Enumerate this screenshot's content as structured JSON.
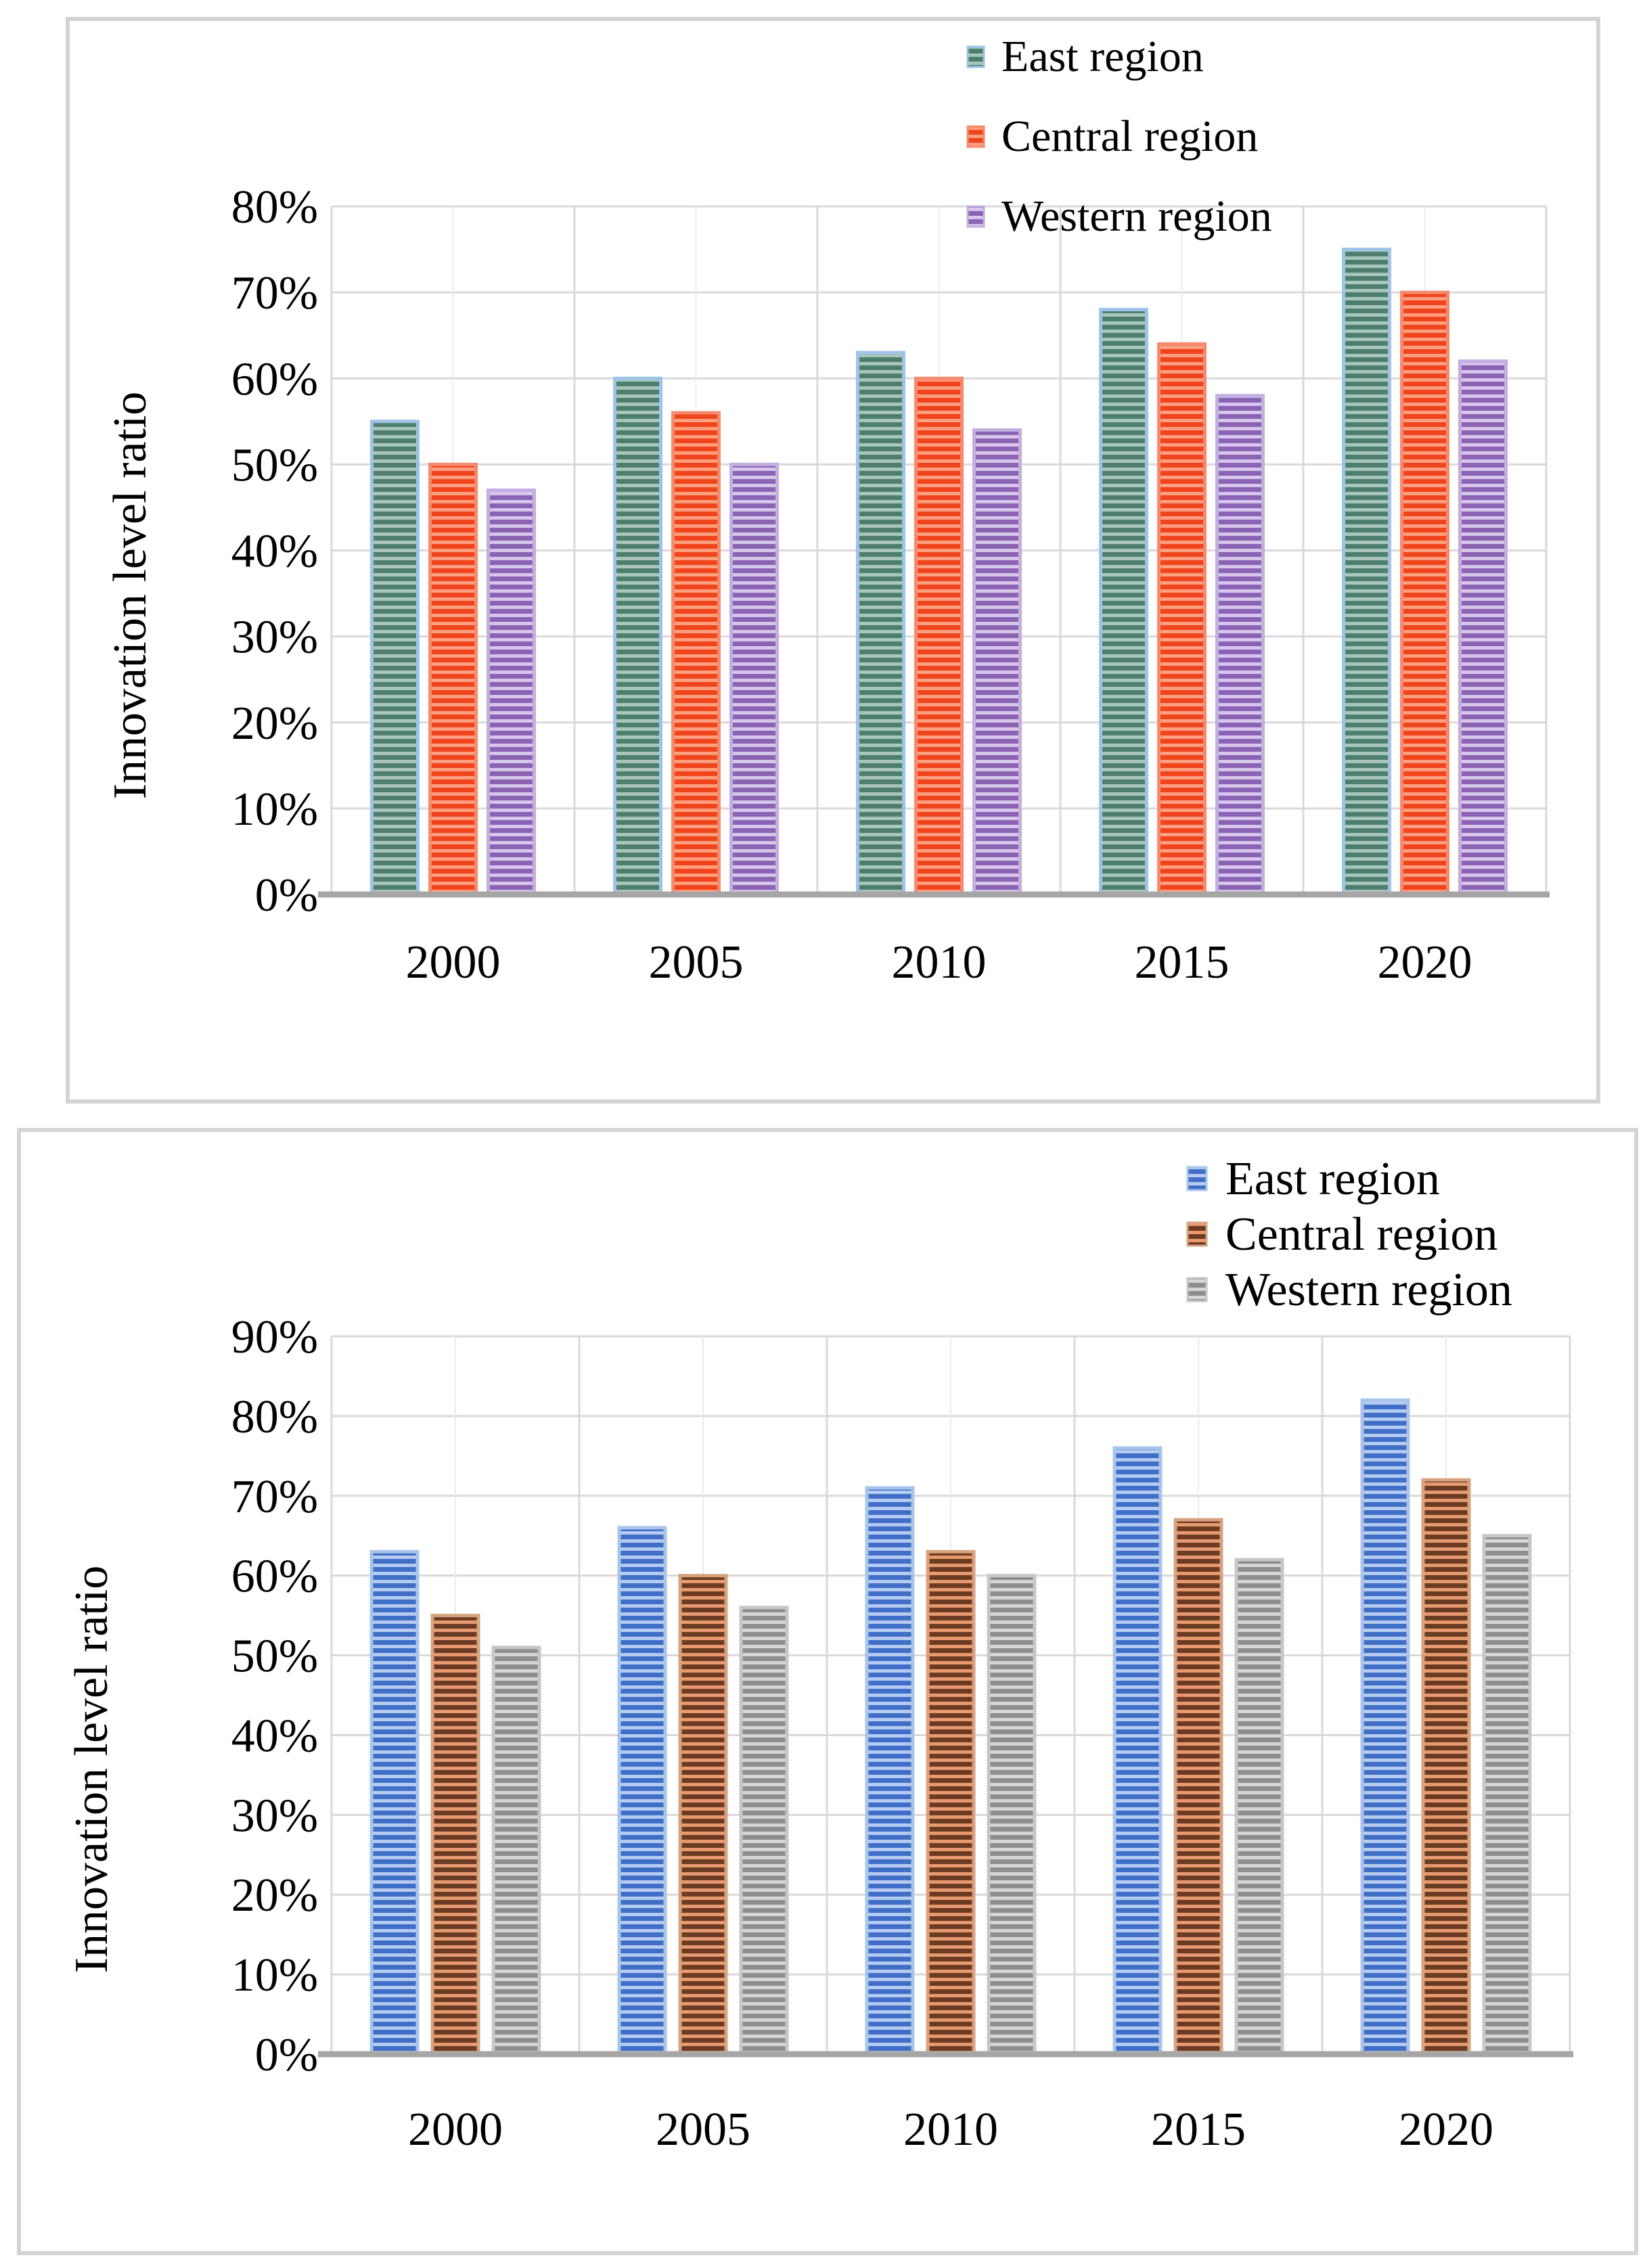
{
  "chart_data": [
    {
      "type": "bar",
      "categories": [
        "2000",
        "2005",
        "2010",
        "2015",
        "2020"
      ],
      "series": [
        {
          "name": "East region",
          "values": [
            0.55,
            0.6,
            0.63,
            0.68,
            0.75
          ],
          "color": "#4e7f6e",
          "stripe": "#a8c7bb",
          "edge": "#9ec3e8"
        },
        {
          "name": "Central region",
          "values": [
            0.5,
            0.56,
            0.6,
            0.64,
            0.7
          ],
          "color": "#f0441c",
          "stripe": "#ff9f80",
          "edge": "#f58a6e"
        },
        {
          "name": "Western region",
          "values": [
            0.47,
            0.5,
            0.54,
            0.58,
            0.62
          ],
          "color": "#8a63b5",
          "stripe": "#d6c6ea",
          "edge": "#c2aee0"
        }
      ],
      "ylabel": "Innovation level ratio",
      "xlabel": "",
      "ylim": [
        0,
        0.8
      ],
      "yticks": [
        "0%",
        "10%",
        "20%",
        "30%",
        "40%",
        "50%",
        "60%",
        "70%",
        "80%"
      ],
      "grid": true,
      "legend_position": "top-right"
    },
    {
      "type": "bar",
      "categories": [
        "2000",
        "2005",
        "2010",
        "2015",
        "2020"
      ],
      "series": [
        {
          "name": "East region",
          "values": [
            0.63,
            0.66,
            0.71,
            0.76,
            0.82
          ],
          "color": "#3f6fc6",
          "stripe": "#b5cbef",
          "edge": "#a9c4ec"
        },
        {
          "name": "Central region",
          "values": [
            0.55,
            0.6,
            0.63,
            0.67,
            0.72
          ],
          "color": "#6b3b23",
          "stripe": "#e89a6e",
          "edge": "#d9a27f"
        },
        {
          "name": "Western region",
          "values": [
            0.51,
            0.56,
            0.6,
            0.62,
            0.65
          ],
          "color": "#8e8e8e",
          "stripe": "#d6d6d6",
          "edge": "#c7c7c7"
        }
      ],
      "ylabel": "Innovation level ratio",
      "xlabel": "",
      "ylim": [
        0,
        0.9
      ],
      "yticks": [
        "0%",
        "10%",
        "20%",
        "30%",
        "40%",
        "50%",
        "60%",
        "70%",
        "80%",
        "90%"
      ],
      "grid": true,
      "legend_position": "top-right"
    }
  ]
}
